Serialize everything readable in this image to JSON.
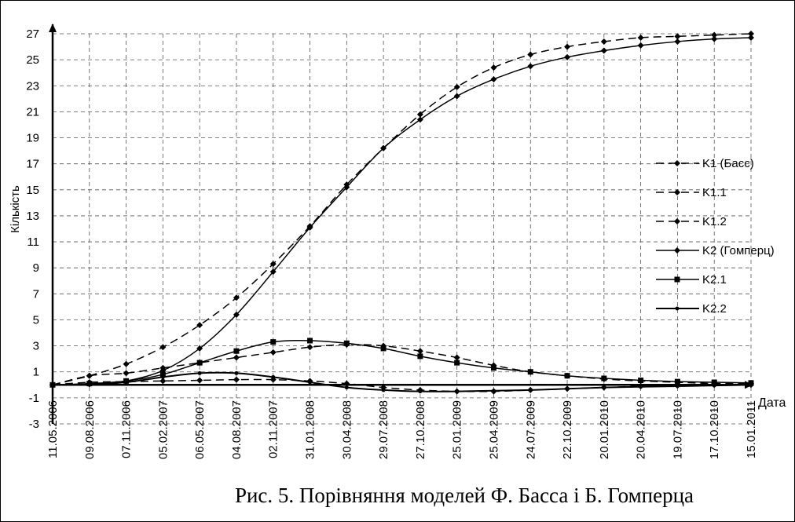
{
  "chart_data": {
    "type": "line",
    "caption": "Рис. 5. Порівняння моделей Ф. Басса і Б. Гомперца",
    "xlabel": "Дата",
    "ylabel": "Кількість",
    "ylim": [
      -3,
      27
    ],
    "y_ticks": [
      -3,
      -1,
      1,
      3,
      5,
      7,
      9,
      11,
      13,
      15,
      17,
      19,
      21,
      23,
      25,
      27
    ],
    "grid": "dashed",
    "legend_position": "right",
    "categories": [
      "11.05.2006",
      "09.08.2006",
      "07.11.2006",
      "05.02.2007",
      "06.05.2007",
      "04.08.2007",
      "02.11.2007",
      "31.01.2008",
      "30.04.2008",
      "29.07.2008",
      "27.10.2008",
      "25.01.2009",
      "25.04.2009",
      "24.07.2009",
      "22.10.2009",
      "20.01.2010",
      "20.04.2010",
      "19.07.2010",
      "17.10.2010",
      "15.01.2011"
    ],
    "series": [
      {
        "name": "K1 (Басс)",
        "dash": "dashed",
        "marker": "diamond",
        "values": [
          0,
          0.7,
          1.6,
          2.9,
          4.6,
          6.7,
          9.3,
          12.2,
          15.4,
          18.2,
          20.8,
          22.9,
          24.4,
          25.4,
          26.0,
          26.4,
          26.7,
          26.8,
          26.9,
          27.0
        ]
      },
      {
        "name": "K1.1",
        "dash": "dashed",
        "marker": "diamond",
        "values": [
          0,
          0.7,
          0.9,
          1.3,
          1.7,
          2.1,
          2.5,
          2.9,
          3.1,
          3.0,
          2.6,
          2.1,
          1.5,
          1.0,
          0.7,
          0.45,
          0.3,
          0.2,
          0.1,
          0.1
        ]
      },
      {
        "name": "K1.2",
        "dash": "dashed",
        "marker": "diamond",
        "values": [
          0,
          0.2,
          0.25,
          0.3,
          0.35,
          0.4,
          0.4,
          0.3,
          0.1,
          -0.2,
          -0.4,
          -0.5,
          -0.5,
          -0.4,
          -0.3,
          -0.2,
          -0.1,
          -0.05,
          0,
          0
        ]
      },
      {
        "name": "K2 (Гомперц)",
        "dash": "solid",
        "marker": "diamond",
        "values": [
          0,
          0.05,
          0.3,
          1.1,
          2.8,
          5.4,
          8.7,
          12.1,
          15.2,
          18.2,
          20.4,
          22.2,
          23.5,
          24.5,
          25.2,
          25.7,
          26.1,
          26.4,
          26.6,
          26.7
        ]
      },
      {
        "name": "K2.1",
        "dash": "solid",
        "marker": "square",
        "values": [
          0,
          0.1,
          0.3,
          0.8,
          1.7,
          2.6,
          3.3,
          3.4,
          3.2,
          2.8,
          2.2,
          1.7,
          1.3,
          1.0,
          0.7,
          0.5,
          0.35,
          0.25,
          0.2,
          0.15
        ]
      },
      {
        "name": "K2.2",
        "dash": "solid",
        "marker": "dot",
        "values": [
          0,
          0.05,
          0.2,
          0.6,
          0.9,
          0.9,
          0.6,
          0.2,
          -0.2,
          -0.4,
          -0.5,
          -0.5,
          -0.45,
          -0.4,
          -0.3,
          -0.2,
          -0.15,
          -0.1,
          -0.05,
          0
        ]
      }
    ]
  }
}
